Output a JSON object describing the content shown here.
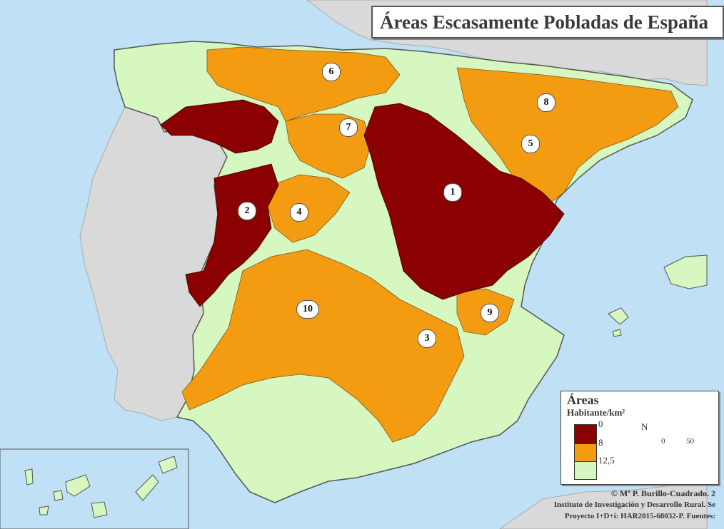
{
  "title": "Áreas Escasamente Pobladas de España",
  "legend": {
    "title": "Áreas",
    "subtitle": "Habitante/km²",
    "breaks": [
      "0",
      "8",
      "12,5"
    ],
    "classes": [
      {
        "range": "0 - 8",
        "color": "#8b0000"
      },
      {
        "range": "8 - 12,5",
        "color": "#f39c12"
      },
      {
        "range": "> 12,5",
        "color": "#d6f7c0"
      }
    ],
    "north_label": "N",
    "scale_labels": [
      "0",
      "50"
    ]
  },
  "areas": [
    {
      "id": "1",
      "label": "1"
    },
    {
      "id": "2",
      "label": "2"
    },
    {
      "id": "3",
      "label": "3"
    },
    {
      "id": "4",
      "label": "4"
    },
    {
      "id": "5",
      "label": "5"
    },
    {
      "id": "6",
      "label": "6"
    },
    {
      "id": "7",
      "label": "7"
    },
    {
      "id": "8",
      "label": "8"
    },
    {
      "id": "9",
      "label": "9"
    },
    {
      "id": "10",
      "label": "10"
    }
  ],
  "credits": {
    "author": "© Mª P. Burillo-Cuadrado. 2",
    "institute": "Instituto de Investigación y Desarrollo Rural. Se",
    "project": "Proyecto I+D+i: HAR2015-68032-P. Fuentes:"
  },
  "colors": {
    "sea": "#bfe0f5",
    "foreign_land": "#d9d9d9",
    "red_class": "#8b0000",
    "orange_class": "#f39c12",
    "green_class": "#d6f7c0"
  }
}
